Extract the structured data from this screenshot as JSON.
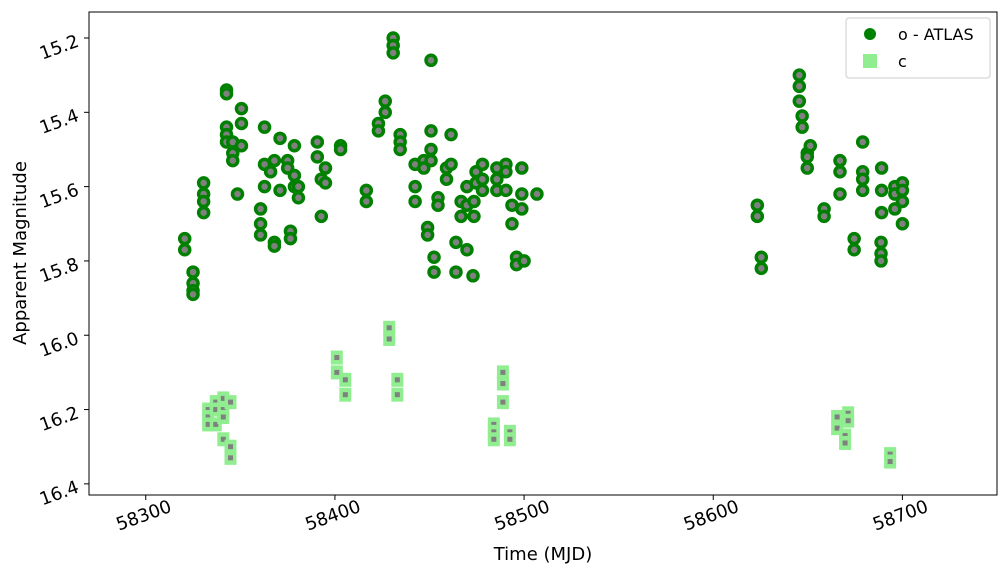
{
  "chart_data": {
    "type": "scatter",
    "xlabel": "Time (MJD)",
    "ylabel": "Apparent Magnitude",
    "xlim": [
      58270,
      58750
    ],
    "ylim": [
      16.43,
      15.13
    ],
    "xticks": [
      58300,
      58400,
      58500,
      58600,
      58700
    ],
    "yticks": [
      15.2,
      15.4,
      15.6,
      15.8,
      {
        "value": 16.0,
        "label": "16.0"
      },
      16.2,
      16.4
    ],
    "legend": "upper right",
    "series": [
      {
        "name": "o - ATLAS",
        "color": "#008000",
        "marker": "circle",
        "x": [
          58320.6,
          58320.6,
          58325,
          58325,
          58325,
          58325,
          58330.6,
          58330.6,
          58330.6,
          58330.6,
          58342.7,
          58342.7,
          58342.7,
          58342.7,
          58342.7,
          58346,
          58346,
          58346,
          58348.5,
          58350.6,
          58350.6,
          58350.6,
          58360.7,
          58360.7,
          58360.7,
          58362.8,
          58362.8,
          58362.8,
          58366,
          58368,
          58368,
          58368,
          58371,
          58371,
          58375,
          58375,
          58376.5,
          58376.5,
          58378.6,
          58378.6,
          58378.6,
          58380.7,
          58380.7,
          58390.7,
          58390.7,
          58392.8,
          58392.8,
          58395,
          58395,
          58403,
          58403,
          58416.6,
          58416.6,
          58423,
          58423,
          58426.6,
          58426.6,
          58430.8,
          58430.8,
          58430.8,
          58434.5,
          58434.5,
          58434.5,
          58442.4,
          58442.4,
          58442.4,
          58447,
          58447,
          58449,
          58449,
          58450.8,
          58450.8,
          58450.8,
          58450.8,
          58452.4,
          58452.4,
          58454.5,
          58454.5,
          58459,
          58459,
          58461.4,
          58461.4,
          58464,
          58464,
          58466.7,
          58466.7,
          58469.8,
          58469.8,
          58469.8,
          58473.5,
          58473.5,
          58474.6,
          58474.6,
          58478,
          58478,
          58478,
          58473,
          58485.6,
          58485.6,
          58485.6,
          58490.4,
          58490.4,
          58490.4,
          58493.6,
          58493.6,
          58496,
          58496,
          58498.8,
          58498.8,
          58498.8,
          58500,
          58506.8,
          58623.3,
          58623.3,
          58625.4,
          58625.4,
          58645.5,
          58645.5,
          58645.5,
          58647,
          58647,
          58649.7,
          58649.7,
          58649.7,
          58651.3,
          58658.6,
          58658.6,
          58667,
          58667,
          58667,
          58674.5,
          58674.5,
          58679,
          58679,
          58679,
          58679,
          58689,
          58689,
          58689,
          58688.7,
          58688.7,
          58688.7,
          58696,
          58696,
          58696,
          58700,
          58700,
          58700,
          58700
        ],
        "values": [
          15.74,
          15.77,
          15.83,
          15.86,
          15.88,
          15.89,
          15.59,
          15.62,
          15.64,
          15.67,
          15.34,
          15.35,
          15.44,
          15.46,
          15.48,
          15.48,
          15.51,
          15.53,
          15.62,
          15.39,
          15.43,
          15.49,
          15.66,
          15.7,
          15.73,
          15.44,
          15.54,
          15.6,
          15.56,
          15.53,
          15.75,
          15.76,
          15.47,
          15.61,
          15.53,
          15.55,
          15.72,
          15.74,
          15.49,
          15.57,
          15.6,
          15.6,
          15.63,
          15.48,
          15.52,
          15.58,
          15.68,
          15.55,
          15.59,
          15.49,
          15.5,
          15.61,
          15.64,
          15.43,
          15.45,
          15.37,
          15.4,
          15.2,
          15.22,
          15.24,
          15.46,
          15.48,
          15.5,
          15.54,
          15.6,
          15.64,
          15.53,
          15.55,
          15.71,
          15.73,
          15.26,
          15.45,
          15.5,
          15.53,
          15.79,
          15.83,
          15.63,
          15.65,
          15.55,
          15.58,
          15.46,
          15.54,
          15.75,
          15.83,
          15.64,
          15.68,
          15.6,
          15.65,
          15.77,
          15.64,
          15.68,
          15.56,
          15.59,
          15.54,
          15.58,
          15.61,
          15.84,
          15.55,
          15.58,
          15.61,
          15.54,
          15.56,
          15.61,
          15.65,
          15.7,
          15.79,
          15.81,
          15.55,
          15.62,
          15.66,
          15.8,
          15.62,
          15.65,
          15.68,
          15.79,
          15.82,
          15.3,
          15.33,
          15.37,
          15.41,
          15.44,
          15.51,
          15.52,
          15.55,
          15.49,
          15.66,
          15.68,
          15.53,
          15.56,
          15.62,
          15.74,
          15.77,
          15.48,
          15.56,
          15.58,
          15.61,
          15.55,
          15.61,
          15.67,
          15.75,
          15.78,
          15.8,
          15.6,
          15.62,
          15.66,
          15.59,
          15.61,
          15.64,
          15.7
        ]
      },
      {
        "name": "c",
        "color": "#90ee90",
        "marker": "square",
        "x": [
          58333,
          58333,
          58333,
          58337,
          58337,
          58337,
          58341,
          58341,
          58341,
          58341,
          58344.8,
          58344.8,
          58344.8,
          58401,
          58401,
          58405.5,
          58405.5,
          58428.7,
          58428.7,
          58433,
          58433,
          58484,
          58484,
          58484,
          58488.8,
          58488.8,
          58488.8,
          58492.5,
          58492.5,
          58665.5,
          58665.5,
          58669.7,
          58669.7,
          58671.3,
          58671.3,
          58693.5,
          58693.5
        ],
        "values": [
          16.2,
          16.22,
          16.24,
          16.18,
          16.2,
          16.24,
          16.17,
          16.2,
          16.22,
          16.28,
          16.18,
          16.3,
          16.33,
          16.06,
          16.1,
          16.12,
          16.16,
          15.98,
          16.01,
          16.12,
          16.16,
          16.24,
          16.26,
          16.28,
          16.1,
          16.13,
          16.18,
          16.26,
          16.28,
          16.22,
          16.25,
          16.27,
          16.29,
          16.21,
          16.23,
          16.32,
          16.34
        ]
      }
    ]
  }
}
